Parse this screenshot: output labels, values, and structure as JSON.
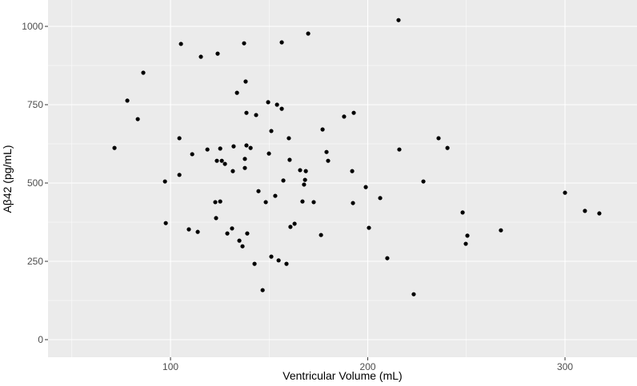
{
  "chart_data": {
    "type": "scatter",
    "x_label": "Ventricular Volume (mL)",
    "y_label": "Aβ42 (pg/mL)",
    "color": "#000000",
    "grid": true,
    "xlim": [
      37.9,
      336.5
    ],
    "ylim": [
      -56.1,
      1084.2
    ],
    "xticks": [
      100,
      200,
      300
    ],
    "yticks": [
      0,
      250,
      500,
      750,
      1000
    ],
    "x": [
      71.6,
      78.1,
      83.4,
      86.2,
      97.2,
      97.6,
      104.5,
      105.3,
      104.5,
      109.3,
      111,
      113.8,
      115.4,
      118.7,
      122.7,
      123.1,
      123.9,
      123.5,
      125.2,
      125.2,
      126,
      127.6,
      128.8,
      131.2,
      131.6,
      132,
      133.7,
      134.9,
      136.5,
      137.3,
      137.7,
      137.7,
      138.1,
      138.5,
      138.5,
      138.9,
      140.6,
      142.6,
      143.4,
      144.6,
      146.7,
      148.3,
      149.5,
      149.9,
      151.1,
      151.1,
      153.1,
      154,
      154.8,
      156.4,
      156.4,
      157.2,
      158.8,
      160,
      160.4,
      160.8,
      162.9,
      165.7,
      166.9,
      167.7,
      168.2,
      168.6,
      169.8,
      172.6,
      176.3,
      177.1,
      179.1,
      179.9,
      188,
      192.1,
      192.5,
      192.9,
      199,
      200.6,
      206.3,
      209.9,
      215.6,
      216,
      223.3,
      228.2,
      235.9,
      240.4,
      248.1,
      249.7,
      250.5,
      267.5,
      300,
      310.1,
      317.4
    ],
    "values": [
      612,
      763,
      704,
      852,
      505,
      372,
      526,
      944,
      643,
      352,
      592,
      344,
      903,
      607,
      439,
      388,
      913,
      571,
      610,
      441,
      571,
      561,
      339,
      355,
      538,
      617,
      788,
      316,
      298,
      946,
      548,
      577,
      824,
      620,
      724,
      339,
      612,
      242,
      717,
      474,
      158,
      439,
      758,
      594,
      666,
      265,
      459,
      750,
      253,
      737,
      949,
      508,
      242,
      643,
      574,
      360,
      370,
      541,
      441,
      495,
      510,
      538,
      977,
      439,
      334,
      671,
      599,
      571,
      712,
      538,
      436,
      724,
      487,
      357,
      452,
      260,
      1020,
      607,
      145,
      505,
      643,
      612,
      406,
      306,
      332,
      349,
      469,
      411,
      403
    ]
  }
}
